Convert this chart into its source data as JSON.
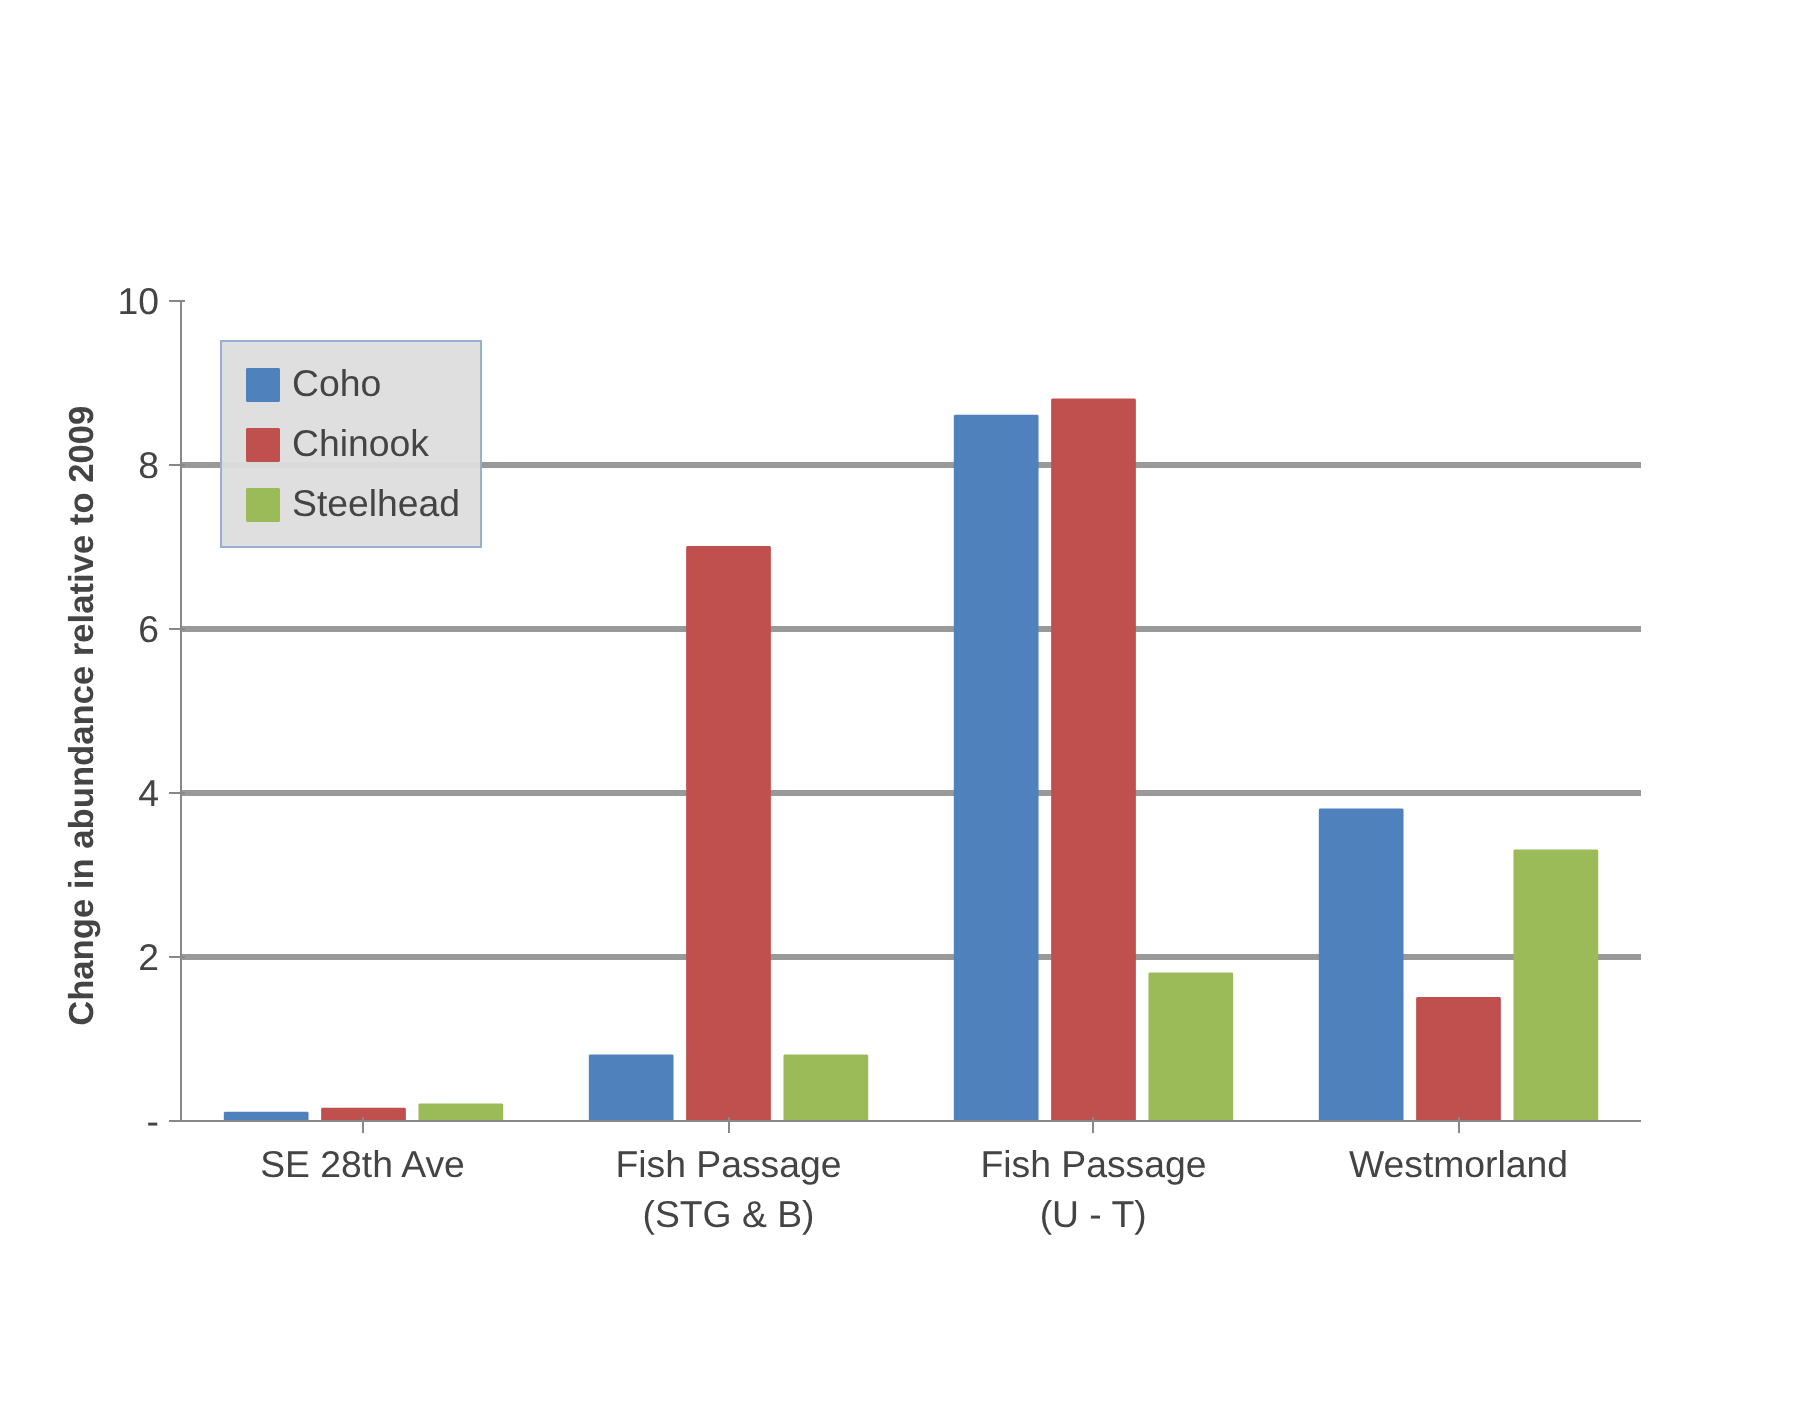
{
  "chart_data": {
    "type": "bar",
    "ylabel": "Change in abundance  relative to 2009",
    "categories": [
      "SE 28th Ave",
      "Fish Passage\n(STG & B)",
      "Fish Passage\n(U - T)",
      "Westmorland"
    ],
    "series": [
      {
        "name": "Coho",
        "color": "#4f81bd",
        "values": [
          0.1,
          0.8,
          8.6,
          3.8
        ]
      },
      {
        "name": "Chinook",
        "color": "#c0504d",
        "values": [
          0.15,
          7.0,
          8.8,
          1.5
        ]
      },
      {
        "name": "Steelhead",
        "color": "#9bbb59",
        "values": [
          0.2,
          0.8,
          1.8,
          3.3
        ]
      }
    ],
    "ylim": [
      0,
      10
    ],
    "yticks": [
      {
        "value": 0,
        "label": "-"
      },
      2,
      4,
      6,
      8,
      10
    ],
    "grid": "y",
    "legend": "top left"
  }
}
